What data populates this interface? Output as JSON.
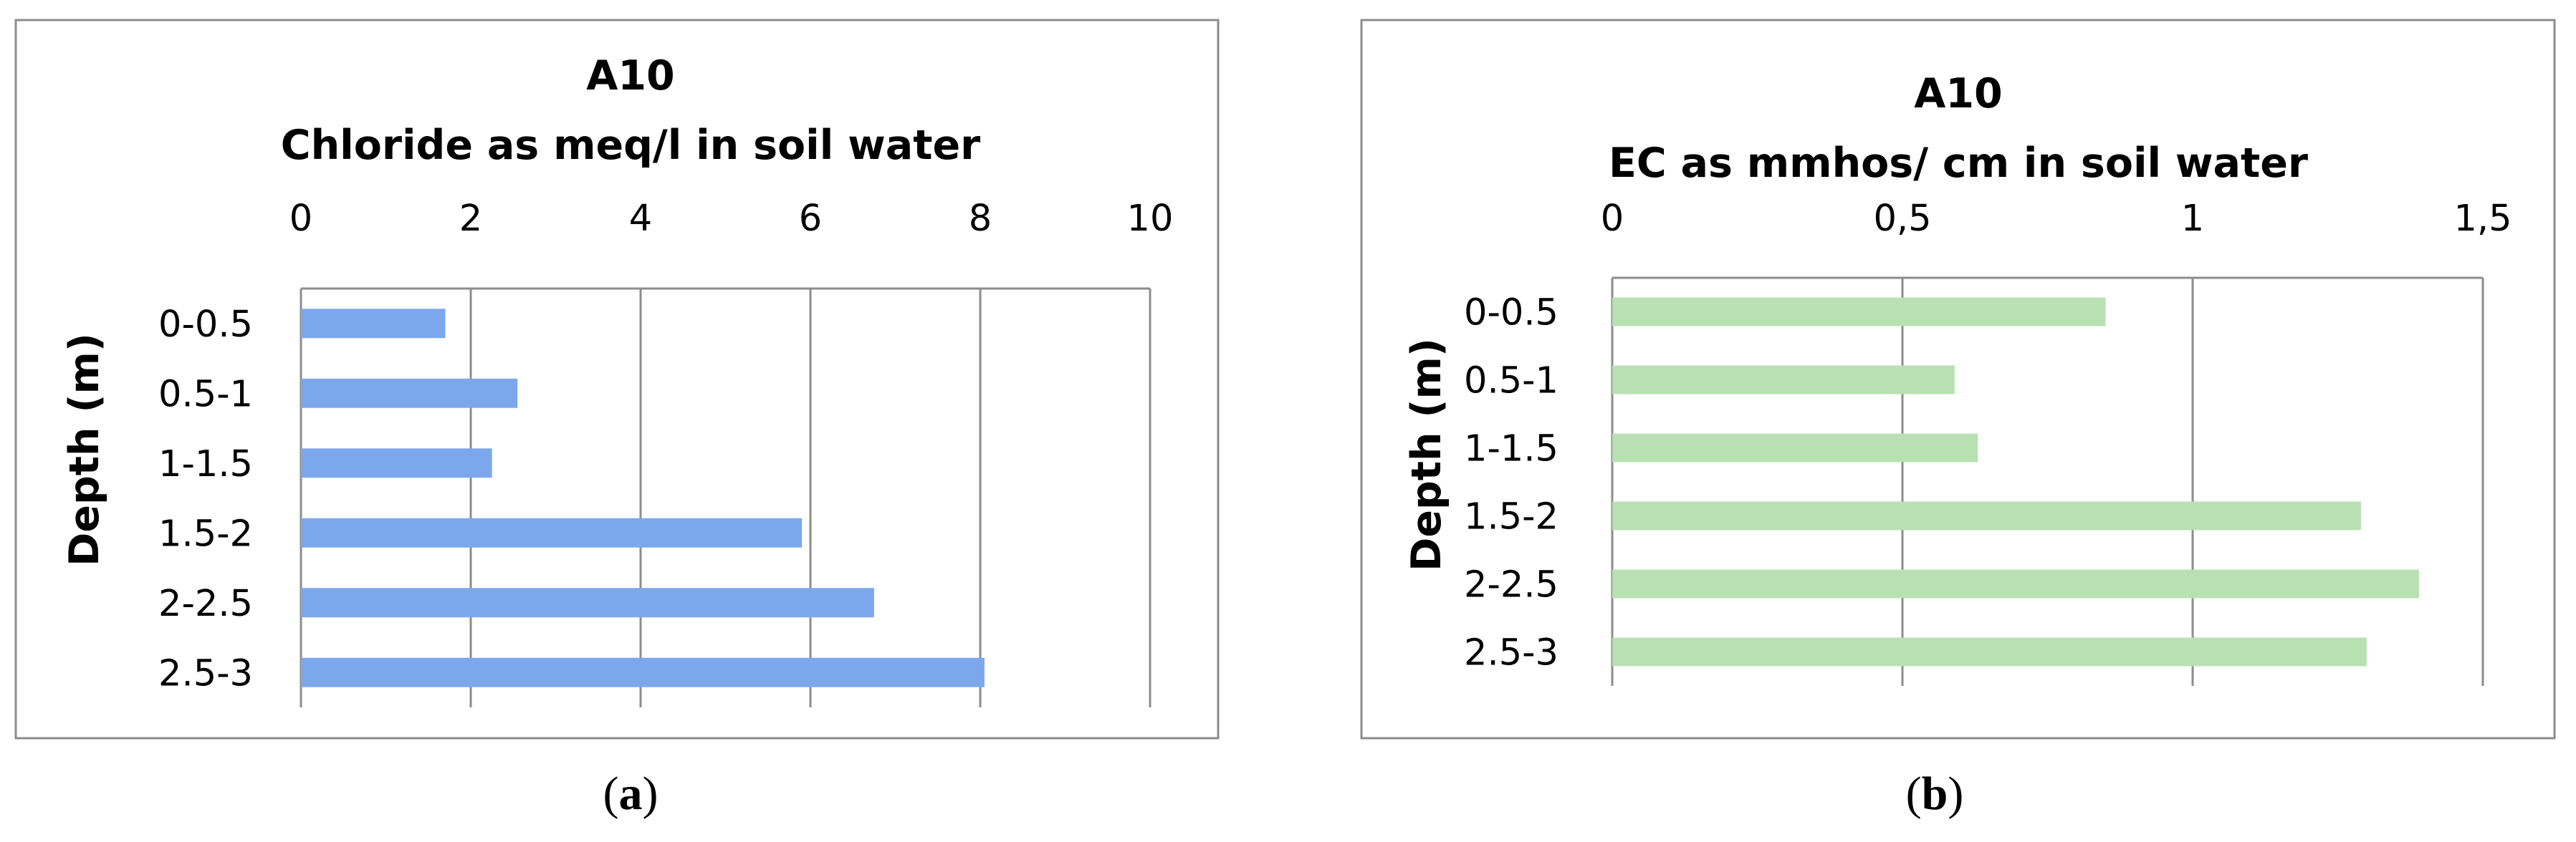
{
  "panels": [
    {
      "sublabel_open": "(",
      "sublabel_letter": "a",
      "sublabel_close": ")",
      "title_line1": "A10",
      "title_line2": "Chloride as meq/l in soil water",
      "ylabel": "Depth (m)",
      "tick_labels": [
        "0",
        "2",
        "4",
        "6",
        "8",
        "10"
      ],
      "bar_color": "#7da7ec"
    },
    {
      "sublabel_open": "(",
      "sublabel_letter": "b",
      "sublabel_close": ")",
      "title_line1": "A10",
      "title_line2": "EC as mmhos/ cm in soil water",
      "ylabel": "Depth (m)",
      "tick_labels": [
        "0",
        "0,5",
        "1",
        "1,5"
      ],
      "bar_color": "#b9e0b3"
    }
  ],
  "chart_data": [
    {
      "type": "bar",
      "orientation": "horizontal",
      "title": "A10 Chloride as meq/l in soil water",
      "xlabel": "",
      "ylabel": "Depth (m)",
      "categories": [
        "0-0.5",
        "0.5-1",
        "1-1.5",
        "1.5-2",
        "2-2.5",
        "2.5-3"
      ],
      "values": [
        1.7,
        2.55,
        2.25,
        5.9,
        6.75,
        8.05
      ],
      "xlim": [
        0,
        10
      ],
      "xticks": [
        0,
        2,
        4,
        6,
        8,
        10
      ],
      "x_axis_position": "top",
      "grid": true,
      "legend": "none"
    },
    {
      "type": "bar",
      "orientation": "horizontal",
      "title": "A10 EC as mmhos/ cm in soil water",
      "xlabel": "",
      "ylabel": "Depth (m)",
      "categories": [
        "0-0.5",
        "0.5-1",
        "1-1.5",
        "1.5-2",
        "2-2.5",
        "2.5-3"
      ],
      "values": [
        0.85,
        0.59,
        0.63,
        1.29,
        1.39,
        1.3
      ],
      "xlim": [
        0,
        1.5
      ],
      "xticks": [
        0,
        0.5,
        1,
        1.5
      ],
      "x_axis_position": "top",
      "grid": true,
      "legend": "none"
    }
  ]
}
